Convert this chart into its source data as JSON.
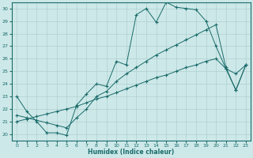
{
  "xlabel": "Humidex (Indice chaleur)",
  "background_color": "#cde8e8",
  "grid_color": "#b0d0d0",
  "line_color": "#1a6b6b",
  "xlim": [
    -0.5,
    23.5
  ],
  "ylim": [
    19.5,
    30.5
  ],
  "yticks": [
    20,
    21,
    22,
    23,
    24,
    25,
    26,
    27,
    28,
    29,
    30
  ],
  "xticks": [
    0,
    1,
    2,
    3,
    4,
    5,
    6,
    7,
    8,
    9,
    10,
    11,
    12,
    13,
    14,
    15,
    16,
    17,
    18,
    19,
    20,
    21,
    22,
    23
  ],
  "line1_x": [
    0,
    1,
    2,
    3,
    4,
    5,
    6,
    7,
    8,
    9,
    10,
    11,
    12,
    13,
    14,
    15,
    16,
    17,
    18,
    19,
    20,
    21,
    22,
    23
  ],
  "line1_y": [
    23.0,
    21.8,
    21.0,
    20.1,
    20.1,
    19.9,
    22.3,
    23.2,
    24.0,
    23.8,
    25.8,
    25.5,
    29.5,
    30.0,
    28.9,
    30.5,
    30.1,
    30.0,
    29.9,
    29.0,
    27.0,
    25.2,
    23.5,
    25.5
  ],
  "line2_x": [
    0,
    1,
    2,
    3,
    4,
    5,
    6,
    7,
    8,
    9,
    10,
    11,
    12,
    13,
    14,
    15,
    16,
    17,
    18,
    19,
    20,
    21,
    22,
    23
  ],
  "line2_y": [
    21.5,
    21.3,
    21.1,
    20.9,
    20.7,
    20.5,
    21.3,
    22.0,
    23.0,
    23.4,
    24.2,
    24.8,
    25.3,
    25.8,
    26.3,
    26.7,
    27.1,
    27.5,
    27.9,
    28.3,
    28.7,
    25.3,
    23.5,
    25.5
  ],
  "line3_x": [
    0,
    1,
    2,
    3,
    4,
    5,
    6,
    7,
    8,
    9,
    10,
    11,
    12,
    13,
    14,
    15,
    16,
    17,
    18,
    19,
    20,
    21,
    22,
    23
  ],
  "line3_y": [
    21.0,
    21.2,
    21.4,
    21.6,
    21.8,
    22.0,
    22.2,
    22.5,
    22.8,
    23.0,
    23.3,
    23.6,
    23.9,
    24.2,
    24.5,
    24.7,
    25.0,
    25.3,
    25.5,
    25.8,
    26.0,
    25.2,
    24.8,
    25.5
  ]
}
